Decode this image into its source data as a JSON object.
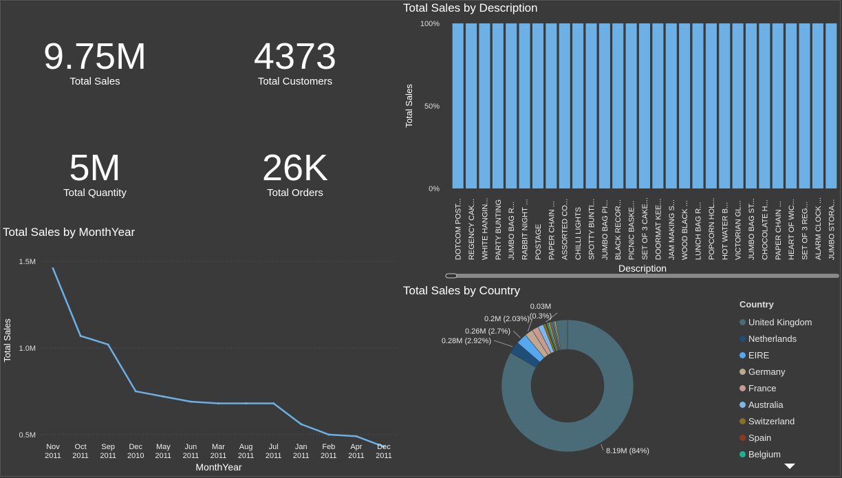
{
  "kpis": {
    "total_sales": {
      "value": "9.75M",
      "label": "Total Sales"
    },
    "total_customers": {
      "value": "4373",
      "label": "Total Customers"
    },
    "total_quantity": {
      "value": "5M",
      "label": "Total Quantity"
    },
    "total_orders": {
      "value": "26K",
      "label": "Total Orders"
    }
  },
  "chart_data": [
    {
      "type": "bar",
      "title": "Total Sales by Description",
      "xlabel": "Description",
      "ylabel": "Total Sales",
      "ylim": [
        0,
        100
      ],
      "y_ticks": [
        "0%",
        "50%",
        "100%"
      ],
      "categories": [
        "DOTCOM POST...",
        "REGENCY CAK...",
        "WHITE HANGIN...",
        "PARTY BUNTING",
        "JUMBO BAG R...",
        "RABBIT NIGHT ...",
        "POSTAGE",
        "PAPER CHAIN ...",
        "ASSORTED CO...",
        "CHILLI LIGHTS",
        "SPOTTY BUNTI...",
        "JUMBO BAG PI...",
        "BLACK RECOR...",
        "PICNIC BASKE...",
        "SET OF 3 CAKE...",
        "DOORMAT KEE...",
        "JAM MAKING S...",
        "WOOD BLACK ...",
        "LUNCH BAG R...",
        "POPCORN HOL...",
        "HOT WATER B...",
        "VICTORIAN GL...",
        "JUMBO BAG ST...",
        "CHOCOLATE H...",
        "PAPER CHAIN ...",
        "HEART OF WIC...",
        "SET OF 3 REG...",
        "ALARM CLOCK ...",
        "JUMBO STORA..."
      ],
      "values": [
        100,
        100,
        100,
        100,
        100,
        100,
        100,
        100,
        100,
        100,
        100,
        100,
        100,
        100,
        100,
        100,
        100,
        100,
        100,
        100,
        100,
        100,
        100,
        100,
        100,
        100,
        100,
        100,
        100
      ],
      "color": "#6cb0e5",
      "grid": false
    },
    {
      "type": "line",
      "title": "Total Sales by MonthYear",
      "xlabel": "MonthYear",
      "ylabel": "Total Sales",
      "ylim": [
        0.4,
        1.6
      ],
      "y_ticks": [
        {
          "v": 0.5,
          "label": "0.5M"
        },
        {
          "v": 1.0,
          "label": "1.0M"
        },
        {
          "v": 1.5,
          "label": "1.5M"
        }
      ],
      "x": [
        {
          "m": "Nov",
          "y": "2011"
        },
        {
          "m": "Oct",
          "y": "2011"
        },
        {
          "m": "Sep",
          "y": "2011"
        },
        {
          "m": "Dec",
          "y": "2010"
        },
        {
          "m": "May",
          "y": "2011"
        },
        {
          "m": "Jun",
          "y": "2011"
        },
        {
          "m": "Mar",
          "y": "2011"
        },
        {
          "m": "Aug",
          "y": "2011"
        },
        {
          "m": "Jul",
          "y": "2011"
        },
        {
          "m": "Jan",
          "y": "2011"
        },
        {
          "m": "Feb",
          "y": "2011"
        },
        {
          "m": "Apr",
          "y": "2011"
        },
        {
          "m": "Dec",
          "y": "2011"
        }
      ],
      "values": [
        1.46,
        1.07,
        1.02,
        0.75,
        0.72,
        0.69,
        0.68,
        0.68,
        0.68,
        0.56,
        0.5,
        0.49,
        0.43
      ],
      "color": "#6cb0e5",
      "grid": true
    },
    {
      "type": "pie",
      "title": "Total Sales by Country",
      "legend_title": "Country",
      "legend_position": "right",
      "slices": [
        {
          "name": "United Kingdom",
          "value": 84.0,
          "color": "#4a6b78",
          "label": "8.19M (84%)"
        },
        {
          "name": "Netherlands",
          "value": 2.92,
          "color": "#1f4e79",
          "label": "0.28M (2.92%)"
        },
        {
          "name": "EIRE",
          "value": 2.7,
          "color": "#55a8f0",
          "label": "0.26M (2.7%)"
        },
        {
          "name": "Germany",
          "value": 2.03,
          "color": "#bfa88e",
          "label": "0.2M (2.03%)"
        },
        {
          "name": "France",
          "value": 1.6,
          "color": "#c99a94",
          "label": ""
        },
        {
          "name": "Australia",
          "value": 1.4,
          "color": "#7fb6e8",
          "label": ""
        },
        {
          "name": "Switzerland",
          "value": 0.6,
          "color": "#8a7026",
          "label": ""
        },
        {
          "name": "Spain",
          "value": 0.3,
          "color": "#8b3a1e",
          "label": "0.03M (0.3%)"
        },
        {
          "name": "Belgium",
          "value": 0.4,
          "color": "#1ab394",
          "label": ""
        },
        {
          "name": "",
          "value": 0.35,
          "color": "#d4b14a",
          "label": ""
        },
        {
          "name": "",
          "value": 0.3,
          "color": "#5a8a4a",
          "label": ""
        },
        {
          "name": "",
          "value": 0.3,
          "color": "#aa6fa0",
          "label": ""
        },
        {
          "name": "",
          "value": 0.3,
          "color": "#2e7fb8",
          "label": ""
        },
        {
          "name": "",
          "value": 0.3,
          "color": "#6fa872",
          "label": ""
        },
        {
          "name": "",
          "value": 0.3,
          "color": "#e8c06a",
          "label": ""
        },
        {
          "name": "",
          "value": 2.9,
          "color": "#4a6b78",
          "label": ""
        }
      ]
    }
  ]
}
